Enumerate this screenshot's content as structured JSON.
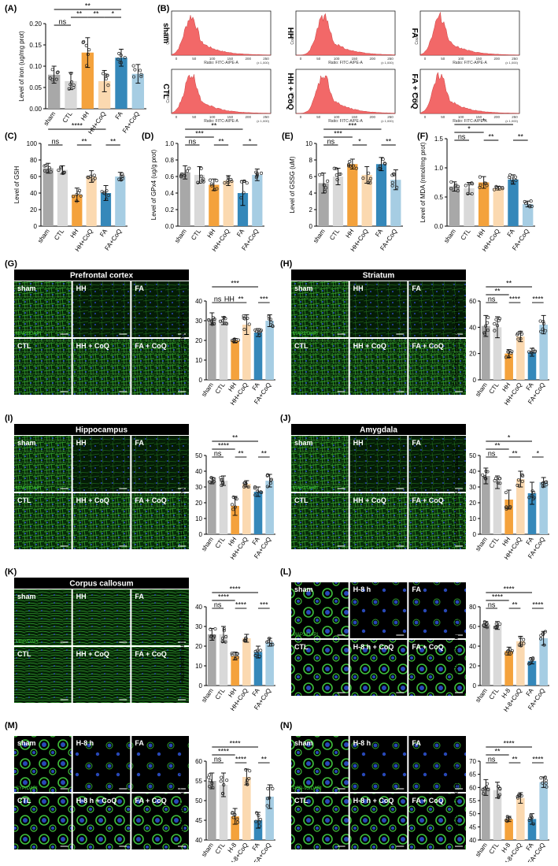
{
  "colors": {
    "sham": "#a8a8a8",
    "ctl": "#d9d9d9",
    "hh": "#f4a23c",
    "hhcoq": "#fbd9b0",
    "fa": "#3588ba",
    "facoq": "#a6cde3",
    "flow": "#f26868",
    "green": "#3fbf3a",
    "blue": "#2848b8"
  },
  "panels": [
    {
      "label": "(A)",
      "ylabel": "Level of iron (ug/mg prot)",
      "cats": [
        "sham",
        "CTL",
        "HH",
        "HH+CoQ",
        "FA",
        "FA+CoQ"
      ],
      "values": [
        0.08,
        0.065,
        0.132,
        0.065,
        0.12,
        0.082
      ],
      "sd": [
        0.02,
        0.02,
        0.035,
        0.025,
        0.02,
        0.022
      ],
      "ylim": [
        0,
        0.2
      ],
      "ticks": [
        "0.00",
        "0.05",
        "0.10",
        "0.15",
        "0.20"
      ],
      "sig": [
        {
          "a": 0,
          "b": 1,
          "t": "ns",
          "r": 1
        },
        {
          "a": 1,
          "b": 2,
          "t": "**",
          "r": 2
        },
        {
          "a": 2,
          "b": 3,
          "t": "**",
          "r": 2
        },
        {
          "a": 3,
          "b": 4,
          "t": "*",
          "r": 2
        },
        {
          "a": 0,
          "b": 4,
          "t": "**",
          "r": 3
        }
      ]
    },
    {
      "label": "(C)",
      "ylabel": "Level of GSH",
      "cats": [
        "sham",
        "CTL",
        "HH",
        "HH+CoQ",
        "FA",
        "FA+CoQ"
      ],
      "values": [
        70,
        68,
        38,
        60,
        40,
        60
      ],
      "sd": [
        6,
        5,
        8,
        7,
        9,
        5
      ],
      "ylim": [
        0,
        100
      ],
      "ticks": [
        "0",
        "20",
        "40",
        "60",
        "80",
        "100"
      ],
      "sig": [
        {
          "a": 0,
          "b": 1,
          "t": "ns",
          "r": 1
        },
        {
          "a": 2,
          "b": 3,
          "t": "**",
          "r": 1
        },
        {
          "a": 4,
          "b": 5,
          "t": "**",
          "r": 1
        },
        {
          "a": 0,
          "b": 4,
          "t": "****",
          "r": 3
        }
      ]
    },
    {
      "label": "(D)",
      "ylabel": "Level of GPx4 (ug/g prot)",
      "cats": [
        "sham",
        "CTL",
        "HH",
        "HH+CoQ",
        "FA",
        "FA+CoQ"
      ],
      "values": [
        0.65,
        0.62,
        0.5,
        0.55,
        0.4,
        0.62
      ],
      "sd": [
        0.08,
        0.1,
        0.07,
        0.06,
        0.15,
        0.07
      ],
      "ylim": [
        0,
        1.0
      ],
      "ticks": [
        "0.0",
        "0.2",
        "0.4",
        "0.6",
        "0.8",
        "1.0"
      ],
      "sig": [
        {
          "a": 0,
          "b": 1,
          "t": "ns",
          "r": 1
        },
        {
          "a": 0,
          "b": 2,
          "t": "***",
          "r": 2
        },
        {
          "a": 2,
          "b": 3,
          "t": "**",
          "r": 1
        },
        {
          "a": 4,
          "b": 5,
          "t": "*",
          "r": 1
        },
        {
          "a": 0,
          "b": 4,
          "t": "**",
          "r": 3
        }
      ]
    },
    {
      "label": "(E)",
      "ylabel": "Level of GSSG (uM)",
      "cats": [
        "sham",
        "CTL",
        "HH",
        "HH+CoQ",
        "FA",
        "FA+CoQ"
      ],
      "values": [
        5.2,
        6.0,
        7.5,
        6.2,
        7.5,
        5.6
      ],
      "sd": [
        1.2,
        1.0,
        0.6,
        1.0,
        0.8,
        1.2
      ],
      "ylim": [
        0,
        10
      ],
      "ticks": [
        "0",
        "2",
        "4",
        "6",
        "8",
        "10"
      ],
      "sig": [
        {
          "a": 0,
          "b": 1,
          "t": "ns",
          "r": 1
        },
        {
          "a": 0,
          "b": 2,
          "t": "***",
          "r": 2
        },
        {
          "a": 2,
          "b": 3,
          "t": "*",
          "r": 1
        },
        {
          "a": 4,
          "b": 5,
          "t": "**",
          "r": 1
        },
        {
          "a": 0,
          "b": 4,
          "t": "***",
          "r": 3
        }
      ]
    },
    {
      "label": "(F)",
      "ylabel": "Level of MDA (nmol/mg prot)",
      "cats": [
        "sham",
        "CTL",
        "HH",
        "HH+CoQ",
        "FA",
        "FA+CoQ"
      ],
      "values": [
        0.68,
        0.65,
        0.75,
        0.65,
        0.8,
        0.38
      ],
      "sd": [
        0.08,
        0.1,
        0.1,
        0.03,
        0.08,
        0.05
      ],
      "ylim": [
        0,
        1.5
      ],
      "ticks": [
        "0.0",
        "0.5",
        "1.0",
        "1.5"
      ],
      "sig": [
        {
          "a": 0,
          "b": 1,
          "t": "ns",
          "r": 1
        },
        {
          "a": 0,
          "b": 2,
          "t": "*",
          "r": 2
        },
        {
          "a": 2,
          "b": 3,
          "t": "**",
          "r": 1
        },
        {
          "a": 4,
          "b": 5,
          "t": "**",
          "r": 1
        },
        {
          "a": 0,
          "b": 4,
          "t": "*",
          "r": 3
        }
      ]
    },
    {
      "label": "",
      "ylabel": "Fluorescent area of PFC (%)",
      "cats": [
        "sham",
        "CTL",
        "HH",
        "HH+CoQ",
        "FA",
        "FA+CoQ"
      ],
      "values": [
        31,
        30,
        20,
        28,
        24,
        30
      ],
      "sd": [
        3,
        2,
        1,
        5,
        2,
        3
      ],
      "ylim": [
        0,
        40
      ],
      "ticks": [
        "0",
        "10",
        "20",
        "30",
        "40"
      ],
      "sig": [
        {
          "a": 0,
          "b": 1,
          "t": "ns",
          "r": 1
        },
        {
          "a": 1,
          "b": 2,
          "t": "HH",
          "r": 1
        },
        {
          "a": 2,
          "b": 3,
          "t": "**",
          "r": 1
        },
        {
          "a": 4,
          "b": 5,
          "t": "***",
          "r": 1
        },
        {
          "a": 0,
          "b": 4,
          "t": "***",
          "r": 3
        }
      ]
    },
    {
      "label": "",
      "ylabel": "Fluorescent area of Striatum (%)",
      "cats": [
        "sham",
        "CTL",
        "HH",
        "HH+CoQ",
        "FA",
        "FA+CoQ"
      ],
      "values": [
        41,
        40,
        20,
        33,
        21,
        42
      ],
      "sd": [
        8,
        8,
        3,
        4,
        3,
        7
      ],
      "ylim": [
        0,
        60
      ],
      "ticks": [
        "0",
        "20",
        "40",
        "60"
      ],
      "sig": [
        {
          "a": 0,
          "b": 1,
          "t": "ns",
          "r": 1
        },
        {
          "a": 0,
          "b": 2,
          "t": "**",
          "r": 2
        },
        {
          "a": 2,
          "b": 3,
          "t": "****",
          "r": 1
        },
        {
          "a": 4,
          "b": 5,
          "t": "****",
          "r": 1
        },
        {
          "a": 0,
          "b": 4,
          "t": "**",
          "r": 3
        }
      ]
    },
    {
      "label": "",
      "ylabel": "Fluorescent area of HPC (%)",
      "cats": [
        "sham",
        "CTL",
        "HH",
        "HH+CoQ",
        "FA",
        "FA+CoQ"
      ],
      "values": [
        34,
        34,
        18,
        32,
        27,
        34
      ],
      "sd": [
        2,
        3,
        6,
        2,
        3,
        4
      ],
      "ylim": [
        0,
        50
      ],
      "ticks": [
        "0",
        "10",
        "20",
        "30",
        "40",
        "50"
      ],
      "sig": [
        {
          "a": 0,
          "b": 1,
          "t": "ns",
          "r": 1
        },
        {
          "a": 0,
          "b": 2,
          "t": "****",
          "r": 2
        },
        {
          "a": 2,
          "b": 3,
          "t": "**",
          "r": 1
        },
        {
          "a": 4,
          "b": 5,
          "t": "**",
          "r": 1
        },
        {
          "a": 0,
          "b": 4,
          "t": "**",
          "r": 3
        }
      ]
    },
    {
      "label": "",
      "ylabel": "Fluorescent area of Amygdala (%)",
      "cats": [
        "sham",
        "CTL",
        "HH",
        "HH+CoQ",
        "FA",
        "FA+CoQ"
      ],
      "values": [
        37,
        33,
        22,
        35,
        26,
        33
      ],
      "sd": [
        5,
        4,
        6,
        5,
        7,
        3
      ],
      "ylim": [
        0,
        50
      ],
      "ticks": [
        "0",
        "10",
        "20",
        "30",
        "40",
        "50"
      ],
      "sig": [
        {
          "a": 0,
          "b": 1,
          "t": "ns",
          "r": 1
        },
        {
          "a": 0,
          "b": 2,
          "t": "**",
          "r": 2
        },
        {
          "a": 2,
          "b": 3,
          "t": "**",
          "r": 1
        },
        {
          "a": 4,
          "b": 5,
          "t": "*",
          "r": 1
        },
        {
          "a": 0,
          "b": 4,
          "t": "*",
          "r": 3
        }
      ]
    },
    {
      "label": "",
      "ylabel": "Fluorescent area of CC (%)",
      "cats": [
        "sham",
        "CTL",
        "HH",
        "HH+CoQ",
        "FA",
        "FA+CoQ"
      ],
      "values": [
        26,
        26,
        15,
        24,
        17,
        22
      ],
      "sd": [
        3,
        4,
        2,
        2,
        3,
        2
      ],
      "ylim": [
        0,
        40
      ],
      "ticks": [
        "0",
        "10",
        "20",
        "30",
        "40"
      ],
      "sig": [
        {
          "a": 0,
          "b": 1,
          "t": "ns",
          "r": 1
        },
        {
          "a": 0,
          "b": 2,
          "t": "****",
          "r": 2
        },
        {
          "a": 2,
          "b": 3,
          "t": "****",
          "r": 1
        },
        {
          "a": 4,
          "b": 5,
          "t": "***",
          "r": 1
        },
        {
          "a": 0,
          "b": 4,
          "t": "****",
          "r": 3
        }
      ]
    },
    {
      "label": "",
      "ylabel": "Fluorescent intensity (%)",
      "cats": [
        "sham",
        "CTL",
        "H-8",
        "H-8+CoQ",
        "FA",
        "FA+CoQ"
      ],
      "values": [
        62,
        61,
        35,
        45,
        25,
        48
      ],
      "sd": [
        3,
        4,
        4,
        5,
        3,
        7
      ],
      "ylim": [
        0,
        80
      ],
      "ticks": [
        "0",
        "20",
        "40",
        "60",
        "80"
      ],
      "sig": [
        {
          "a": 0,
          "b": 1,
          "t": "ns",
          "r": 1
        },
        {
          "a": 0,
          "b": 2,
          "t": "****",
          "r": 2
        },
        {
          "a": 2,
          "b": 3,
          "t": "**",
          "r": 1
        },
        {
          "a": 4,
          "b": 5,
          "t": "****",
          "r": 1
        },
        {
          "a": 0,
          "b": 4,
          "t": "****",
          "r": 3
        }
      ]
    },
    {
      "label": "",
      "ylabel": "Fluorescent intensity (%)",
      "cats": [
        "sham",
        "CTL",
        "H-8",
        "H-8+CoQ",
        "FA",
        "FA+CoQ"
      ],
      "values": [
        55,
        54,
        46,
        56,
        45,
        51
      ],
      "sd": [
        2,
        3,
        2,
        2,
        2,
        3
      ],
      "ylim": [
        40,
        60
      ],
      "ticks": [
        "40",
        "45",
        "50",
        "55",
        "60"
      ],
      "sig": [
        {
          "a": 0,
          "b": 1,
          "t": "ns",
          "r": 1
        },
        {
          "a": 0,
          "b": 2,
          "t": "****",
          "r": 2
        },
        {
          "a": 2,
          "b": 3,
          "t": "****",
          "r": 1
        },
        {
          "a": 4,
          "b": 5,
          "t": "**",
          "r": 1
        },
        {
          "a": 0,
          "b": 4,
          "t": "****",
          "r": 3
        }
      ]
    },
    {
      "label": "",
      "ylabel": "Fluorescent intensity (%)",
      "cats": [
        "sham",
        "CTL",
        "H-8",
        "H-8+CoQ",
        "FA",
        "FA+CoQ"
      ],
      "values": [
        60,
        59,
        48,
        56,
        48,
        62
      ],
      "sd": [
        3,
        3,
        1,
        2,
        2,
        2
      ],
      "ylim": [
        40,
        70
      ],
      "ticks": [
        "40",
        "45",
        "50",
        "55",
        "60",
        "65",
        "70"
      ],
      "sig": [
        {
          "a": 0,
          "b": 1,
          "t": "ns",
          "r": 1
        },
        {
          "a": 0,
          "b": 2,
          "t": "**",
          "r": 2
        },
        {
          "a": 2,
          "b": 3,
          "t": "**",
          "r": 1
        },
        {
          "a": 4,
          "b": 5,
          "t": "****",
          "r": 1
        },
        {
          "a": 0,
          "b": 4,
          "t": "****",
          "r": 3
        }
      ]
    }
  ],
  "flow": {
    "label": "(B)",
    "xlabel": "Ratio: FITC-A/PE-A",
    "scale": "(x 1,000)",
    "count": "Count",
    "ticks": [
      "0",
      "50",
      "100",
      "150",
      "200",
      "250"
    ],
    "groups": [
      "sham",
      "HH",
      "FA",
      "CTL",
      "HH + CoQ",
      "FA + CoQ"
    ]
  },
  "micro": [
    {
      "label": "(G)",
      "title": "Prefrontal cortex",
      "stain": "MAP2/DAPI",
      "groups": [
        "sham",
        "HH",
        "FA",
        "CTL",
        "HH + CoQ",
        "FA + CoQ"
      ]
    },
    {
      "label": "(H)",
      "title": "Striatum",
      "stain": "MAP2/DAPI",
      "groups": [
        "sham",
        "HH",
        "FA",
        "CTL",
        "HH + CoQ",
        "FA + CoQ"
      ]
    },
    {
      "label": "(I)",
      "title": "Hippocampus",
      "stain": "MAP2/DAPI",
      "groups": [
        "sham",
        "HH",
        "FA",
        "CTL",
        "HH + CoQ",
        "FA + CoQ"
      ]
    },
    {
      "label": "(J)",
      "title": "Amygdala",
      "stain": "MAP2/DAPI",
      "groups": [
        "sham",
        "HH",
        "FA",
        "CTL",
        "HH + CoQ",
        "FA + CoQ"
      ]
    },
    {
      "label": "(K)",
      "title": "Corpus callosum",
      "stain": "MBP/DAPI",
      "groups": [
        "sham",
        "HH",
        "FA",
        "CTL",
        "HH + CoQ",
        "FA + CoQ"
      ]
    },
    {
      "label": "(L)",
      "title": "",
      "stain": "MAP2/DAPI",
      "groups": [
        "sham",
        "H-8 h",
        "FA",
        "CTL",
        "H-8 h + CoQ",
        "FA + CoQ"
      ]
    },
    {
      "label": "(M)",
      "title": "",
      "stain": "SYP/DAPI",
      "groups": [
        "sham",
        "H-8 h",
        "FA",
        "CTL",
        "H-8 h + CoQ",
        "FA + CoQ"
      ]
    },
    {
      "label": "(N)",
      "title": "",
      "stain": "PSD-95/DAPI",
      "groups": [
        "sham",
        "H-8 h",
        "FA",
        "CTL",
        "H-8 h + CoQ",
        "FA + CoQ"
      ]
    }
  ]
}
